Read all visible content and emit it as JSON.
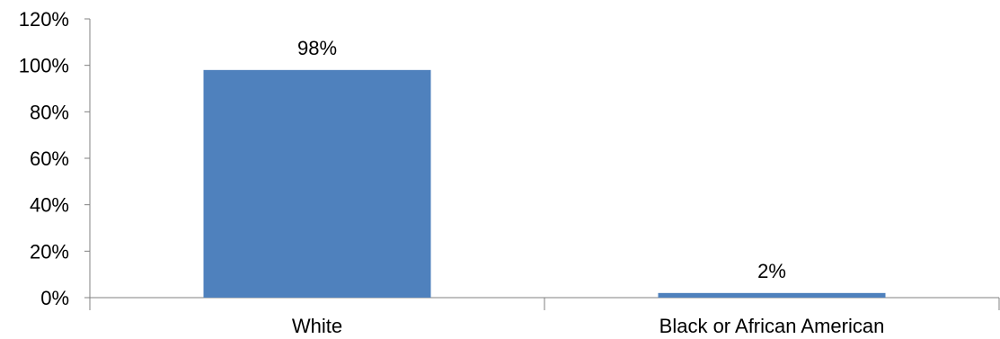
{
  "chart_data": {
    "type": "bar",
    "categories": [
      "White",
      "Black or African American"
    ],
    "values": [
      98,
      2
    ],
    "data_labels": [
      "98%",
      "2%"
    ],
    "y_ticks": [
      "0%",
      "20%",
      "40%",
      "60%",
      "80%",
      "100%",
      "120%"
    ],
    "ylim": [
      0,
      120
    ],
    "y_unit": "%",
    "title": "",
    "xlabel": "",
    "ylabel": "",
    "grid": false,
    "legend": "none",
    "bar_color": "#4f81bd",
    "axis_color": "#808080"
  }
}
